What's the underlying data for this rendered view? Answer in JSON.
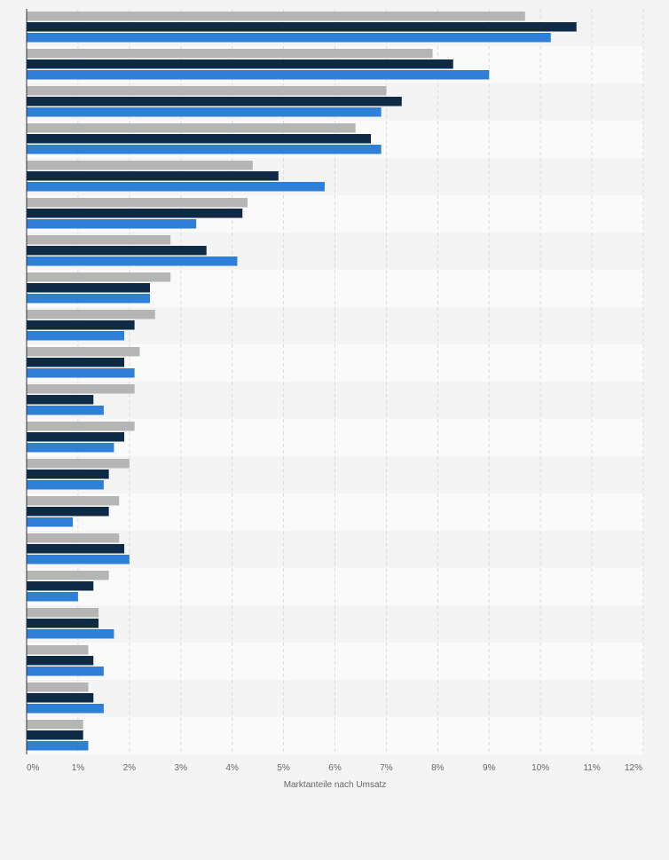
{
  "chart_data": {
    "type": "bar",
    "orientation": "horizontal",
    "title": "",
    "xlabel": "Marktanteile nach Umsatz",
    "ylabel": "",
    "xlim": [
      0,
      12
    ],
    "x_ticks": [
      0,
      1,
      2,
      3,
      4,
      5,
      6,
      7,
      8,
      9,
      10,
      11,
      12
    ],
    "tick_suffix": "%",
    "grid": true,
    "legend": "none",
    "category_labels_visible": false,
    "series": [
      {
        "color": "#b5b5b5",
        "values": [
          9.7,
          7.9,
          7.0,
          6.4,
          4.4,
          4.3,
          2.8,
          2.8,
          2.5,
          2.2,
          2.1,
          2.1,
          2.0,
          1.8,
          1.8,
          1.6,
          1.4,
          1.2,
          1.2,
          1.1
        ]
      },
      {
        "color": "#0e2a47",
        "values": [
          10.7,
          8.3,
          7.3,
          6.7,
          4.9,
          4.2,
          3.5,
          2.4,
          2.1,
          1.9,
          1.3,
          1.9,
          1.6,
          1.6,
          1.9,
          1.3,
          1.4,
          1.3,
          1.3,
          1.1
        ]
      },
      {
        "color": "#2f7ed8",
        "values": [
          10.2,
          9.0,
          6.9,
          6.9,
          5.8,
          3.3,
          4.1,
          2.4,
          1.9,
          2.1,
          1.5,
          1.7,
          1.5,
          0.9,
          2.0,
          1.0,
          1.7,
          1.5,
          1.5,
          1.2
        ]
      }
    ]
  },
  "colors": {
    "band_light": "#f4f4f4",
    "band_dark": "#fafafa",
    "grid": "#dcdcdc",
    "axis": "#333333"
  }
}
